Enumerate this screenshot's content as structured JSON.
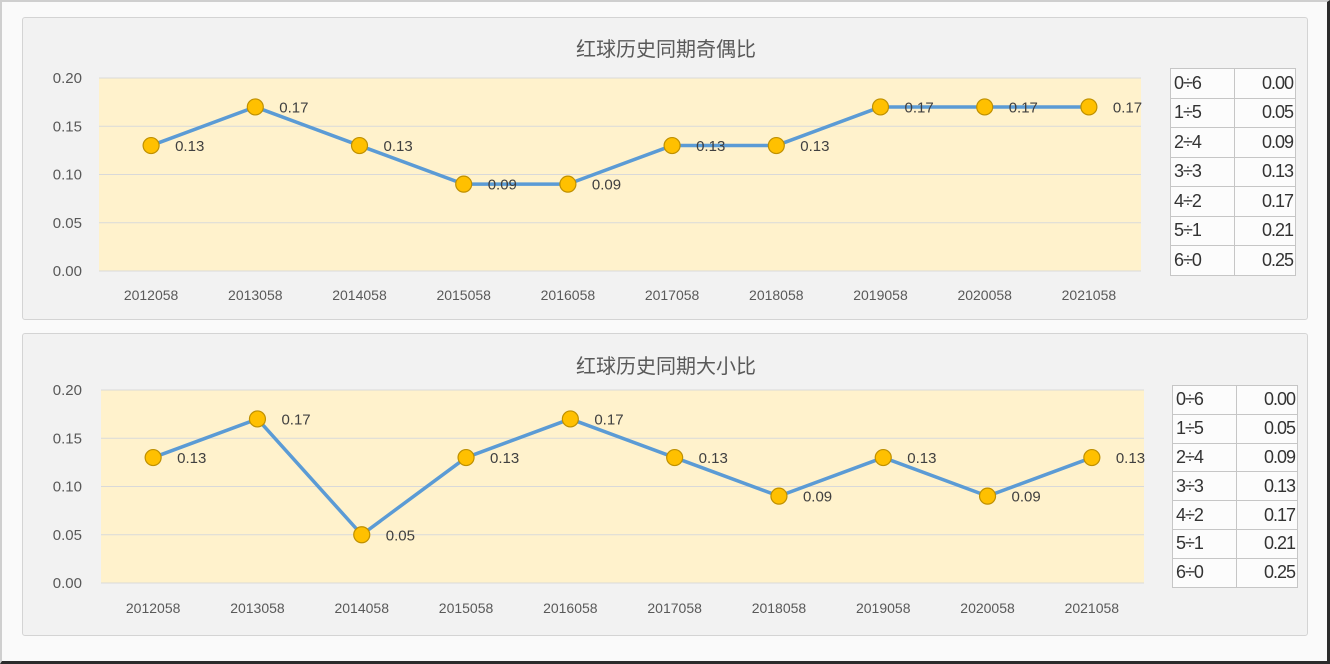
{
  "colors": {
    "plot_area": "#fff2cc",
    "gridline": "#d9d9d9",
    "line": "#5b9bd5",
    "marker_fill": "#ffc000",
    "marker_stroke": "#bf9000"
  },
  "chart_data": [
    {
      "type": "line",
      "title": "红球历史同期奇偶比",
      "categories": [
        "2012058",
        "2013058",
        "2014058",
        "2015058",
        "2016058",
        "2017058",
        "2018058",
        "2019058",
        "2020058",
        "2021058"
      ],
      "values": [
        0.13,
        0.17,
        0.13,
        0.09,
        0.09,
        0.13,
        0.13,
        0.17,
        0.17,
        0.17
      ],
      "ylim": [
        0,
        0.2
      ],
      "yticks": [
        "0.00",
        "0.05",
        "0.10",
        "0.15",
        "0.20"
      ],
      "grid": true,
      "data_labels": true
    },
    {
      "type": "line",
      "title": "红球历史同期大小比",
      "categories": [
        "2012058",
        "2013058",
        "2014058",
        "2015058",
        "2016058",
        "2017058",
        "2018058",
        "2019058",
        "2020058",
        "2021058"
      ],
      "values": [
        0.13,
        0.17,
        0.05,
        0.13,
        0.17,
        0.13,
        0.09,
        0.13,
        0.09,
        0.13
      ],
      "ylim": [
        0,
        0.2
      ],
      "yticks": [
        "0.00",
        "0.05",
        "0.10",
        "0.15",
        "0.20"
      ],
      "grid": true,
      "data_labels": true
    }
  ],
  "side_tables": [
    {
      "rows": [
        {
          "ratio": "0÷6",
          "value": "0.00"
        },
        {
          "ratio": "1÷5",
          "value": "0.05"
        },
        {
          "ratio": "2÷4",
          "value": "0.09"
        },
        {
          "ratio": "3÷3",
          "value": "0.13"
        },
        {
          "ratio": "4÷2",
          "value": "0.17"
        },
        {
          "ratio": "5÷1",
          "value": "0.21"
        },
        {
          "ratio": "6÷0",
          "value": "0.25"
        }
      ]
    },
    {
      "rows": [
        {
          "ratio": "0÷6",
          "value": "0.00"
        },
        {
          "ratio": "1÷5",
          "value": "0.05"
        },
        {
          "ratio": "2÷4",
          "value": "0.09"
        },
        {
          "ratio": "3÷3",
          "value": "0.13"
        },
        {
          "ratio": "4÷2",
          "value": "0.17"
        },
        {
          "ratio": "5÷1",
          "value": "0.21"
        },
        {
          "ratio": "6÷0",
          "value": "0.25"
        }
      ]
    }
  ]
}
